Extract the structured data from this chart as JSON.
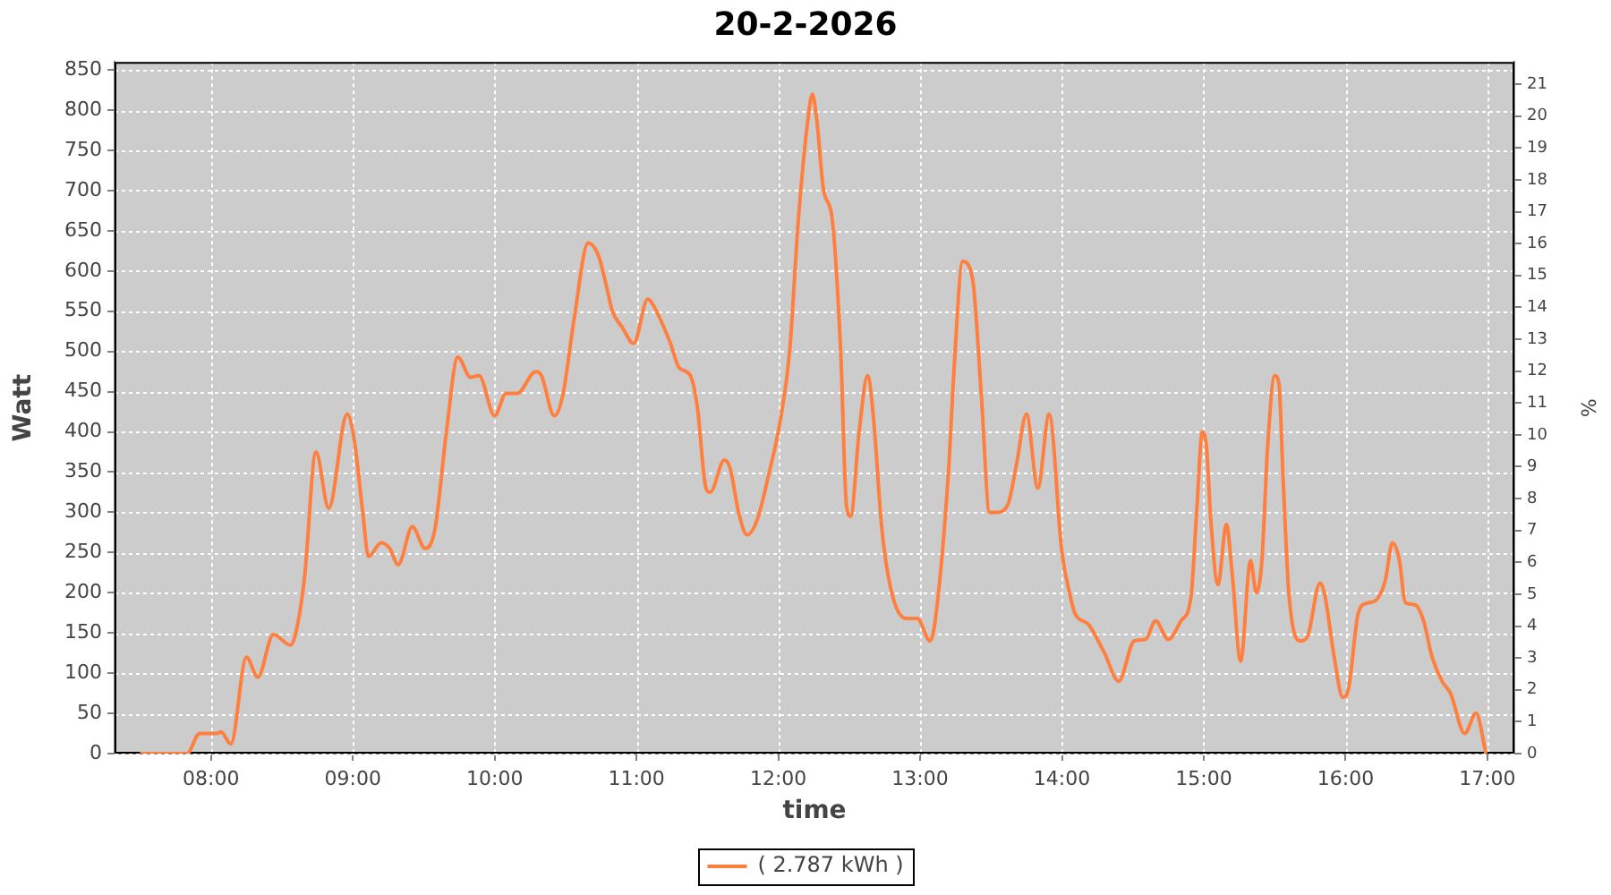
{
  "chart_data": {
    "type": "line",
    "title": "20-2-2026",
    "xlabel": "time",
    "ylabel": "Watt",
    "y2label": "%",
    "x": [
      7.5,
      7.76,
      7.83,
      7.92,
      8.04,
      8.07,
      8.14,
      8.25,
      8.33,
      8.44,
      8.56,
      8.61,
      8.66,
      8.74,
      8.83,
      8.96,
      9.01,
      9.07,
      9.11,
      9.2,
      9.26,
      9.32,
      9.42,
      9.51,
      9.58,
      9.66,
      9.74,
      9.83,
      9.89,
      10.0,
      10.08,
      10.16,
      10.29,
      10.33,
      10.42,
      10.48,
      10.56,
      10.66,
      10.73,
      10.79,
      10.83,
      10.9,
      10.98,
      11.08,
      11.11,
      11.24,
      11.3,
      11.38,
      11.43,
      11.49,
      11.52,
      11.62,
      11.66,
      11.72,
      11.78,
      11.85,
      11.93,
      12.02,
      12.08,
      12.14,
      12.21,
      12.24,
      12.27,
      12.32,
      12.38,
      12.44,
      12.48,
      12.51,
      12.57,
      12.63,
      12.67,
      12.73,
      12.8,
      12.9,
      12.98,
      13.07,
      13.11,
      13.2,
      13.24,
      13.3,
      13.37,
      13.43,
      13.49,
      13.54,
      13.62,
      13.68,
      13.75,
      13.83,
      13.91,
      14.0,
      14.06,
      14.09,
      14.19,
      14.3,
      14.4,
      14.51,
      14.59,
      14.66,
      14.75,
      14.84,
      14.91,
      14.95,
      14.99,
      15.02,
      15.05,
      15.1,
      15.16,
      15.2,
      15.26,
      15.33,
      15.37,
      15.41,
      15.45,
      15.5,
      15.53,
      15.56,
      15.6,
      15.68,
      15.73,
      15.82,
      15.85,
      15.92,
      15.98,
      16.02,
      16.09,
      16.15,
      16.21,
      16.28,
      16.33,
      16.38,
      16.42,
      16.49,
      16.55,
      16.61,
      16.68,
      16.74,
      16.84,
      16.92,
      16.99
    ],
    "series": [
      {
        "name": "( 2.787 kWh )",
        "color": "#ff7f3f",
        "values": [
          0,
          0,
          0,
          25,
          25,
          27,
          12,
          120,
          95,
          148,
          135,
          160,
          220,
          375,
          305,
          422,
          390,
          300,
          245,
          262,
          255,
          235,
          282,
          255,
          280,
          400,
          493,
          468,
          470,
          420,
          448,
          448,
          475,
          470,
          420,
          445,
          540,
          635,
          620,
          580,
          550,
          530,
          510,
          565,
          560,
          510,
          480,
          470,
          430,
          330,
          325,
          365,
          355,
          300,
          272,
          290,
          345,
          420,
          500,
          660,
          790,
          820,
          790,
          700,
          665,
          500,
          310,
          295,
          400,
          470,
          420,
          280,
          200,
          168,
          168,
          140,
          170,
          350,
          480,
          612,
          590,
          450,
          300,
          300,
          310,
          360,
          422,
          330,
          422,
          250,
          195,
          175,
          160,
          125,
          90,
          140,
          142,
          165,
          142,
          165,
          195,
          300,
          400,
          380,
          290,
          210,
          285,
          225,
          115,
          240,
          200,
          240,
          380,
          470,
          460,
          340,
          200,
          140,
          145,
          212,
          200,
          120,
          70,
          80,
          175,
          187,
          190,
          215,
          262,
          240,
          188,
          185,
          165,
          120,
          90,
          75,
          25,
          50,
          0
        ]
      }
    ],
    "xlim": [
      7.32,
      17.19
    ],
    "xticks": [
      {
        "value": 8,
        "label": "08:00"
      },
      {
        "value": 9,
        "label": "09:00"
      },
      {
        "value": 10,
        "label": "10:00"
      },
      {
        "value": 11,
        "label": "11:00"
      },
      {
        "value": 12,
        "label": "12:00"
      },
      {
        "value": 13,
        "label": "13:00"
      },
      {
        "value": 14,
        "label": "14:00"
      },
      {
        "value": 15,
        "label": "15:00"
      },
      {
        "value": 16,
        "label": "16:00"
      },
      {
        "value": 17,
        "label": "17:00"
      }
    ],
    "ylim": [
      0,
      860
    ],
    "yticks": [
      0,
      50,
      100,
      150,
      200,
      250,
      300,
      350,
      400,
      450,
      500,
      550,
      600,
      650,
      700,
      750,
      800,
      850
    ],
    "y2lim": [
      0,
      21.7
    ],
    "y2ticks": [
      0,
      1,
      2,
      3,
      4,
      5,
      6,
      7,
      8,
      9,
      10,
      11,
      12,
      13,
      14,
      15,
      16,
      17,
      18,
      19,
      20,
      21
    ],
    "grid": true,
    "legend": "bottom",
    "marker": "none",
    "line_style": "solid"
  }
}
